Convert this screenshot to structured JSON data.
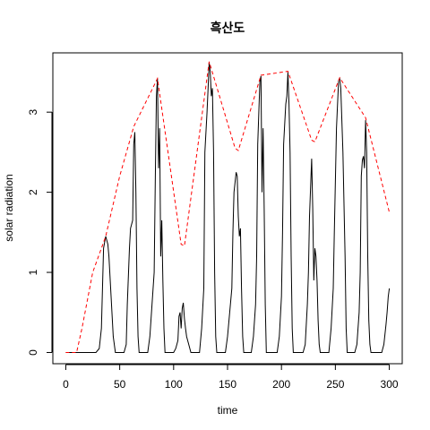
{
  "chart_data": {
    "type": "line",
    "title": "흑산도",
    "xlabel": "time",
    "ylabel": "solar radiation",
    "xlim": [
      -12,
      312
    ],
    "ylim": [
      -0.14,
      3.74
    ],
    "xticks": [
      "0",
      "50",
      "100",
      "150",
      "200",
      "250",
      "300"
    ],
    "yticks": [
      "0",
      "1",
      "2",
      "3"
    ],
    "grid": false,
    "legend": "none",
    "series": [
      {
        "color": "#000000",
        "style": "solid",
        "points": [
          [
            0,
            0
          ],
          [
            28,
            0
          ],
          [
            31,
            0.05
          ],
          [
            33,
            0.3
          ],
          [
            34,
            0.8
          ],
          [
            35,
            1.3
          ],
          [
            37,
            1.45
          ],
          [
            38,
            1.4
          ],
          [
            39,
            1.35
          ],
          [
            40,
            1.2
          ],
          [
            42,
            0.7
          ],
          [
            44,
            0.2
          ],
          [
            46,
            0
          ],
          [
            54,
            0
          ],
          [
            56,
            0.1
          ],
          [
            57,
            0.6
          ],
          [
            59,
            1.3
          ],
          [
            60,
            1.55
          ],
          [
            62,
            1.65
          ],
          [
            63,
            2.6
          ],
          [
            64,
            2.75
          ],
          [
            65,
            2.0
          ],
          [
            66,
            0.8
          ],
          [
            67,
            0.2
          ],
          [
            68,
            0
          ],
          [
            76,
            0
          ],
          [
            78,
            0.2
          ],
          [
            80,
            0.6
          ],
          [
            82,
            1.0
          ],
          [
            83,
            2.2
          ],
          [
            84,
            3.2
          ],
          [
            85,
            3.42
          ],
          [
            86,
            2.3
          ],
          [
            87,
            2.8
          ],
          [
            88,
            1.2
          ],
          [
            89,
            1.65
          ],
          [
            90,
            0.9
          ],
          [
            91,
            0.3
          ],
          [
            92,
            0
          ],
          [
            100,
            0
          ],
          [
            102,
            0.05
          ],
          [
            104,
            0.15
          ],
          [
            105,
            0.45
          ],
          [
            106,
            0.5
          ],
          [
            107,
            0.3
          ],
          [
            108,
            0.55
          ],
          [
            109,
            0.62
          ],
          [
            110,
            0.42
          ],
          [
            111,
            0.3
          ],
          [
            112,
            0.2
          ],
          [
            113,
            0.15
          ],
          [
            114,
            0.1
          ],
          [
            116,
            0
          ],
          [
            124,
            0
          ],
          [
            126,
            0.3
          ],
          [
            128,
            0.8
          ],
          [
            129,
            2.5
          ],
          [
            131,
            3.0
          ],
          [
            132,
            3.3
          ],
          [
            133,
            3.62
          ],
          [
            134,
            3.5
          ],
          [
            135,
            3.2
          ],
          [
            136,
            3.3
          ],
          [
            137,
            2.5
          ],
          [
            138,
            1.0
          ],
          [
            139,
            0.2
          ],
          [
            140,
            0
          ],
          [
            148,
            0
          ],
          [
            150,
            0.2
          ],
          [
            152,
            0.5
          ],
          [
            154,
            0.8
          ],
          [
            155,
            1.5
          ],
          [
            156,
            2.0
          ],
          [
            158,
            2.25
          ],
          [
            159,
            2.2
          ],
          [
            160,
            1.7
          ],
          [
            161,
            1.45
          ],
          [
            162,
            1.55
          ],
          [
            163,
            0.8
          ],
          [
            164,
            0.2
          ],
          [
            165,
            0
          ],
          [
            172,
            0
          ],
          [
            174,
            0.2
          ],
          [
            176,
            0.6
          ],
          [
            177,
            1.2
          ],
          [
            178,
            2.6
          ],
          [
            180,
            3.38
          ],
          [
            181,
            3.45
          ],
          [
            182,
            2.0
          ],
          [
            183,
            2.8
          ],
          [
            184,
            1.8
          ],
          [
            185,
            0.6
          ],
          [
            186,
            0
          ],
          [
            196,
            0
          ],
          [
            198,
            0.2
          ],
          [
            200,
            0.7
          ],
          [
            201,
            1.5
          ],
          [
            202,
            2.6
          ],
          [
            204,
            3.1
          ],
          [
            205,
            3.2
          ],
          [
            206,
            3.5
          ],
          [
            207,
            3.1
          ],
          [
            208,
            2.5
          ],
          [
            209,
            1.2
          ],
          [
            210,
            0.3
          ],
          [
            211,
            0
          ],
          [
            220,
            0
          ],
          [
            222,
            0.1
          ],
          [
            224,
            0.6
          ],
          [
            225,
            1.0
          ],
          [
            226,
            1.7
          ],
          [
            228,
            2.42
          ],
          [
            229,
            1.8
          ],
          [
            230,
            0.9
          ],
          [
            231,
            1.3
          ],
          [
            232,
            1.2
          ],
          [
            233,
            0.9
          ],
          [
            234,
            0.4
          ],
          [
            235,
            0.1
          ],
          [
            236,
            0
          ],
          [
            244,
            0
          ],
          [
            246,
            0.3
          ],
          [
            248,
            0.8
          ],
          [
            249,
            1.5
          ],
          [
            251,
            2.8
          ],
          [
            253,
            3.4
          ],
          [
            254,
            3.42
          ],
          [
            255,
            3.3
          ],
          [
            257,
            2.5
          ],
          [
            259,
            1.2
          ],
          [
            260,
            0.3
          ],
          [
            261,
            0
          ],
          [
            268,
            0
          ],
          [
            270,
            0.1
          ],
          [
            272,
            0.5
          ],
          [
            273,
            1.0
          ],
          [
            274,
            2.2
          ],
          [
            275,
            2.4
          ],
          [
            276,
            2.45
          ],
          [
            277,
            2.3
          ],
          [
            278,
            2.9
          ],
          [
            279,
            2.5
          ],
          [
            280,
            1.2
          ],
          [
            281,
            0.4
          ],
          [
            282,
            0.1
          ],
          [
            283,
            0
          ],
          [
            293,
            0
          ],
          [
            295,
            0.1
          ],
          [
            297,
            0.35
          ],
          [
            298,
            0.5
          ],
          [
            299,
            0.7
          ],
          [
            300,
            0.8
          ]
        ]
      },
      {
        "color": "#ff0000",
        "style": "dashed",
        "points": [
          [
            0,
            0
          ],
          [
            10,
            0
          ],
          [
            15,
            0.3
          ],
          [
            25,
            1.0
          ],
          [
            37,
            1.45
          ],
          [
            50,
            2.2
          ],
          [
            63,
            2.82
          ],
          [
            85,
            3.42
          ],
          [
            107,
            1.35
          ],
          [
            110,
            1.33
          ],
          [
            133,
            3.63
          ],
          [
            157,
            2.55
          ],
          [
            160,
            2.52
          ],
          [
            181,
            3.46
          ],
          [
            206,
            3.51
          ],
          [
            228,
            2.65
          ],
          [
            231,
            2.63
          ],
          [
            254,
            3.43
          ],
          [
            278,
            2.93
          ],
          [
            300,
            1.75
          ]
        ]
      }
    ]
  }
}
